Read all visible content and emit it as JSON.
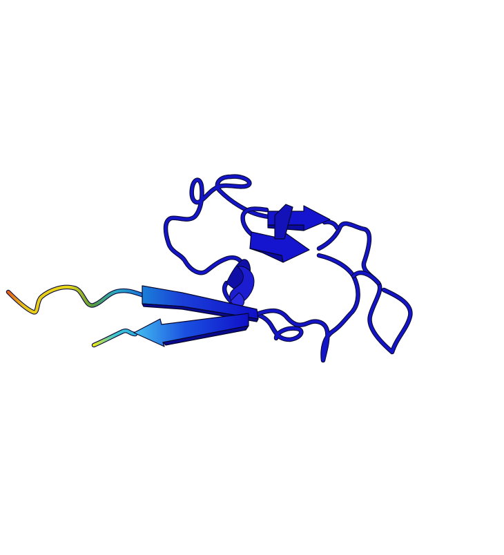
{
  "scene": {
    "background": "#ffffff",
    "style": "cartoon",
    "coloring": "rainbow-by-confidence",
    "palette": {
      "high": "#1515c8",
      "mid_high": "#1fa0e0",
      "mid": "#3ec0d8",
      "mid_low": "#4f9f3a",
      "low": "#e8d21a",
      "very_low": "#e0701a"
    },
    "elements": {
      "strands": 4,
      "helices": 1
    }
  }
}
